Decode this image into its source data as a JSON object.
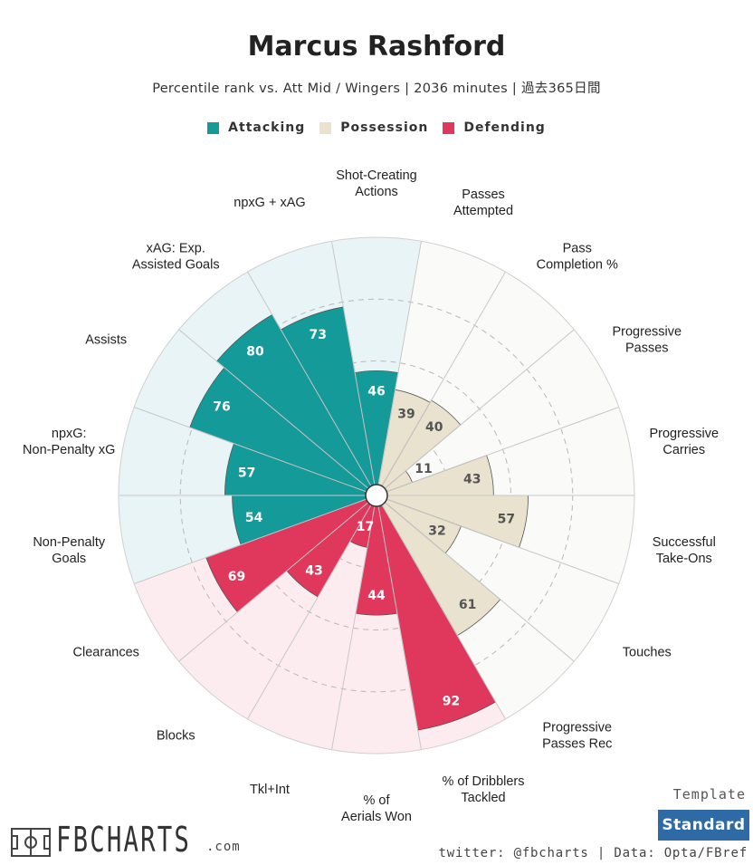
{
  "header": {
    "title": "Marcus Rashford",
    "subtitle": "Percentile rank vs. Att Mid / Wingers | 2036 minutes | 過去365日間"
  },
  "legend": [
    {
      "label": "Attacking",
      "color": "#159a9a"
    },
    {
      "label": "Possession",
      "color": "#e8e2cf"
    },
    {
      "label": "Defending",
      "color": "#e0375c"
    }
  ],
  "chart_data": {
    "type": "polar-bar",
    "range": [
      0,
      100
    ],
    "categories": [
      {
        "label": "Shot-Creating Actions",
        "value": 46,
        "group": "Attacking"
      },
      {
        "label": "Passes Attempted",
        "value": 39,
        "group": "Possession"
      },
      {
        "label": "Pass Completion %",
        "value": 40,
        "group": "Possession"
      },
      {
        "label": "Progressive Passes",
        "value": 11,
        "group": "Possession"
      },
      {
        "label": "Progressive Carries",
        "value": 43,
        "group": "Possession"
      },
      {
        "label": "Successful Take-Ons",
        "value": 57,
        "group": "Possession"
      },
      {
        "label": "Touches",
        "value": 32,
        "group": "Possession"
      },
      {
        "label": "Progressive Passes Rec",
        "value": 61,
        "group": "Possession"
      },
      {
        "label": "% of Dribblers Tackled",
        "value": 92,
        "group": "Defending"
      },
      {
        "label": "% of Aerials Won",
        "value": 44,
        "group": "Defending"
      },
      {
        "label": "Tkl+Int",
        "value": 17,
        "group": "Defending"
      },
      {
        "label": "Blocks",
        "value": 43,
        "group": "Defending"
      },
      {
        "label": "Clearances",
        "value": 69,
        "group": "Defending"
      },
      {
        "label": "Non-Penalty Goals",
        "value": 54,
        "group": "Attacking"
      },
      {
        "label": "npxG: Non-Penalty xG",
        "value": 57,
        "group": "Attacking"
      },
      {
        "label": "Assists",
        "value": 76,
        "group": "Attacking"
      },
      {
        "label": "xAG: Exp. Assisted Goals",
        "value": 80,
        "group": "Attacking"
      },
      {
        "label": "npxG + xAG",
        "value": 73,
        "group": "Attacking"
      }
    ],
    "grid_rings": [
      25,
      50,
      75
    ],
    "colors": {
      "Attacking": {
        "bar": "#159a9a",
        "bg": "#e8f4f5"
      },
      "Possession": {
        "bar": "#e8e2cf",
        "bg": "#fafaf8"
      },
      "Defending": {
        "bar": "#e0375c",
        "bg": "#fcebef"
      }
    }
  },
  "footer": {
    "template_label": "Template",
    "template_value": "Standard",
    "credits": "twitter: @fbcharts | Data: Opta/FBref",
    "logo_text": "FBCHARTS",
    "logo_suffix": ".com"
  }
}
